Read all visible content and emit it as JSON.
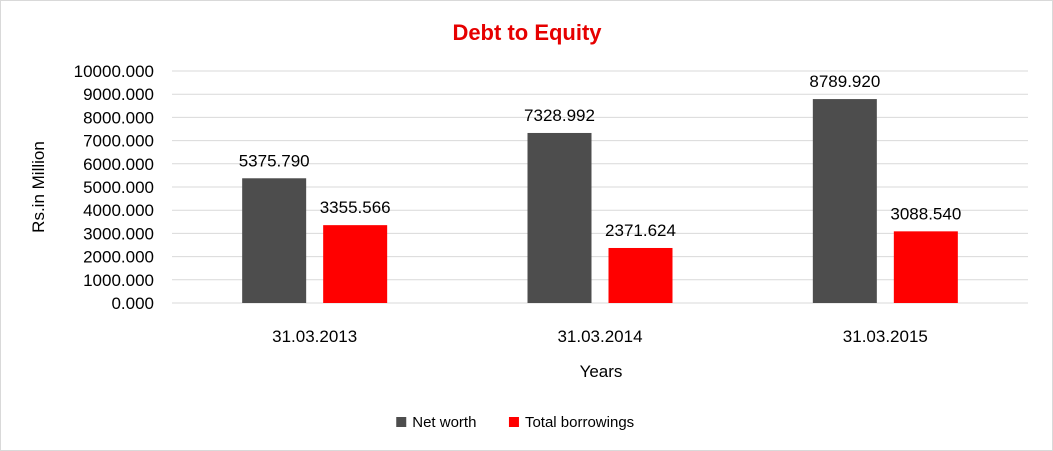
{
  "chart_data": {
    "type": "bar",
    "title": "Debt to Equity",
    "title_color": "#e60000",
    "xlabel": "Years",
    "ylabel": "Rs.in Million",
    "categories": [
      "31.03.2013",
      "31.03.2014",
      "31.03.2015"
    ],
    "series": [
      {
        "name": "Net worth",
        "color": "#4d4d4d",
        "values": [
          5375.79,
          7328.992,
          8789.92
        ],
        "labels": [
          "5375.790",
          "7328.992",
          "8789.920"
        ]
      },
      {
        "name": "Total borrowings",
        "color": "#ff0000",
        "values": [
          3355.566,
          2371.624,
          3088.54
        ],
        "labels": [
          "3355.566",
          "2371.624",
          "3088.540"
        ]
      }
    ],
    "ylim": [
      0,
      10000
    ],
    "yticks": [
      "0.000",
      "1000.000",
      "2000.000",
      "3000.000",
      "4000.000",
      "5000.000",
      "6000.000",
      "7000.000",
      "8000.000",
      "9000.000",
      "10000.000"
    ],
    "grid": true,
    "legend_position": "bottom"
  }
}
